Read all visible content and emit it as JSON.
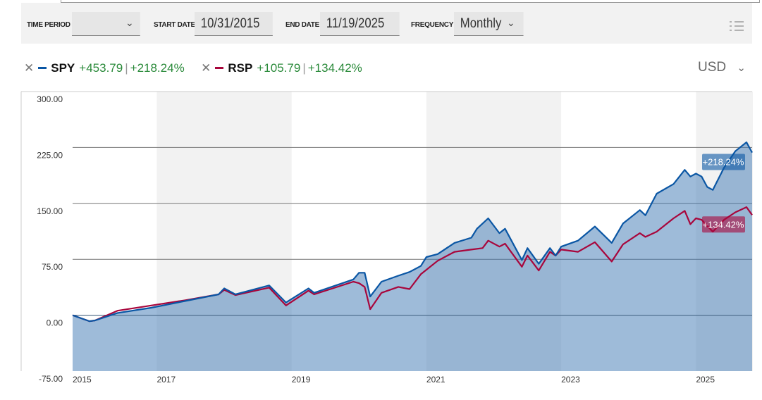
{
  "toolbar": {
    "time_period_label": "TIME PERIOD",
    "time_period_value": "",
    "start_date_label": "START DATE",
    "start_date_value": "10/31/2015",
    "end_date_label": "END DATE",
    "end_date_value": "11/19/2025",
    "frequency_label": "FREQUENCY",
    "frequency_value": "Monthly",
    "menu_icon": "list-icon"
  },
  "legend": [
    {
      "ticker": "SPY",
      "change": "+453.79",
      "pct": "+218.24%",
      "color": "#0a56a4"
    },
    {
      "ticker": "RSP",
      "change": "+105.79",
      "pct": "+134.42%",
      "color": "#a8063c"
    }
  ],
  "currency": "USD",
  "chart_data": {
    "type": "line",
    "ylim": [
      -75,
      300
    ],
    "yticks": [
      "300.00",
      "225.00",
      "150.00",
      "75.00",
      "0.00",
      "-75.00"
    ],
    "yticks_values": [
      300,
      225,
      150,
      75,
      0,
      -75
    ],
    "xticks": [
      "2015",
      "2017",
      "2019",
      "2021",
      "2023",
      "2025"
    ],
    "xlim": [
      "2015-10",
      "2025-11"
    ],
    "shaded_bands": [
      [
        "2017-01",
        "2019-01"
      ],
      [
        "2021-01",
        "2023-01"
      ],
      [
        "2025-01",
        "2025-11"
      ]
    ],
    "grid": true,
    "series": [
      {
        "name": "SPY",
        "color": "#0a56a4",
        "end_label": "+218.24%",
        "area": true,
        "points": [
          [
            "2015-10",
            0
          ],
          [
            "2016-01",
            -8
          ],
          [
            "2016-02",
            -7
          ],
          [
            "2016-06",
            3
          ],
          [
            "2016-12",
            10
          ],
          [
            "2017-06",
            19
          ],
          [
            "2017-12",
            28
          ],
          [
            "2018-01",
            36
          ],
          [
            "2018-03",
            28
          ],
          [
            "2018-09",
            40
          ],
          [
            "2018-12",
            17
          ],
          [
            "2019-04",
            36
          ],
          [
            "2019-05",
            30
          ],
          [
            "2019-12",
            48
          ],
          [
            "2020-01",
            57
          ],
          [
            "2020-02",
            57
          ],
          [
            "2020-03",
            25
          ],
          [
            "2020-05",
            45
          ],
          [
            "2020-08",
            53
          ],
          [
            "2020-10",
            58
          ],
          [
            "2020-12",
            66
          ],
          [
            "2021-01",
            78
          ],
          [
            "2021-03",
            82
          ],
          [
            "2021-06",
            97
          ],
          [
            "2021-09",
            104
          ],
          [
            "2021-10",
            116
          ],
          [
            "2021-12",
            130
          ],
          [
            "2022-02",
            110
          ],
          [
            "2022-03",
            116
          ],
          [
            "2022-06",
            74
          ],
          [
            "2022-07",
            90
          ],
          [
            "2022-09",
            69
          ],
          [
            "2022-11",
            90
          ],
          [
            "2022-12",
            80
          ],
          [
            "2023-01",
            92
          ],
          [
            "2023-04",
            100
          ],
          [
            "2023-07",
            119
          ],
          [
            "2023-10",
            97
          ],
          [
            "2023-12",
            123
          ],
          [
            "2024-03",
            141
          ],
          [
            "2024-04",
            134
          ],
          [
            "2024-06",
            163
          ],
          [
            "2024-09",
            176
          ],
          [
            "2024-11",
            195
          ],
          [
            "2024-12",
            186
          ],
          [
            "2025-01",
            190
          ],
          [
            "2025-02",
            186
          ],
          [
            "2025-03",
            172
          ],
          [
            "2025-04",
            168
          ],
          [
            "2025-06",
            198
          ],
          [
            "2025-08",
            220
          ],
          [
            "2025-10",
            232
          ],
          [
            "2025-11",
            218.24
          ]
        ]
      },
      {
        "name": "RSP",
        "color": "#a8063c",
        "end_label": "+134.42%",
        "points": [
          [
            "2015-10",
            0
          ],
          [
            "2016-01",
            -8
          ],
          [
            "2016-02",
            -7
          ],
          [
            "2016-06",
            6
          ],
          [
            "2016-12",
            13
          ],
          [
            "2017-06",
            20
          ],
          [
            "2017-12",
            28
          ],
          [
            "2018-01",
            34
          ],
          [
            "2018-03",
            27
          ],
          [
            "2018-09",
            37
          ],
          [
            "2018-12",
            13
          ],
          [
            "2019-04",
            33
          ],
          [
            "2019-05",
            28
          ],
          [
            "2019-12",
            45
          ],
          [
            "2020-01",
            43
          ],
          [
            "2020-02",
            38
          ],
          [
            "2020-03",
            8
          ],
          [
            "2020-05",
            30
          ],
          [
            "2020-08",
            38
          ],
          [
            "2020-10",
            35
          ],
          [
            "2020-12",
            55
          ],
          [
            "2021-03",
            73
          ],
          [
            "2021-06",
            85
          ],
          [
            "2021-09",
            88
          ],
          [
            "2021-11",
            90
          ],
          [
            "2021-12",
            100
          ],
          [
            "2022-02",
            92
          ],
          [
            "2022-03",
            96
          ],
          [
            "2022-06",
            65
          ],
          [
            "2022-07",
            80
          ],
          [
            "2022-09",
            60
          ],
          [
            "2022-11",
            85
          ],
          [
            "2022-12",
            80
          ],
          [
            "2023-01",
            88
          ],
          [
            "2023-04",
            85
          ],
          [
            "2023-07",
            98
          ],
          [
            "2023-10",
            72
          ],
          [
            "2023-12",
            95
          ],
          [
            "2024-03",
            110
          ],
          [
            "2024-04",
            105
          ],
          [
            "2024-06",
            112
          ],
          [
            "2024-09",
            130
          ],
          [
            "2024-11",
            140
          ],
          [
            "2024-12",
            122
          ],
          [
            "2025-01",
            130
          ],
          [
            "2025-02",
            128
          ],
          [
            "2025-04",
            112
          ],
          [
            "2025-06",
            128
          ],
          [
            "2025-08",
            138
          ],
          [
            "2025-10",
            145
          ],
          [
            "2025-11",
            134.42
          ]
        ]
      }
    ]
  }
}
